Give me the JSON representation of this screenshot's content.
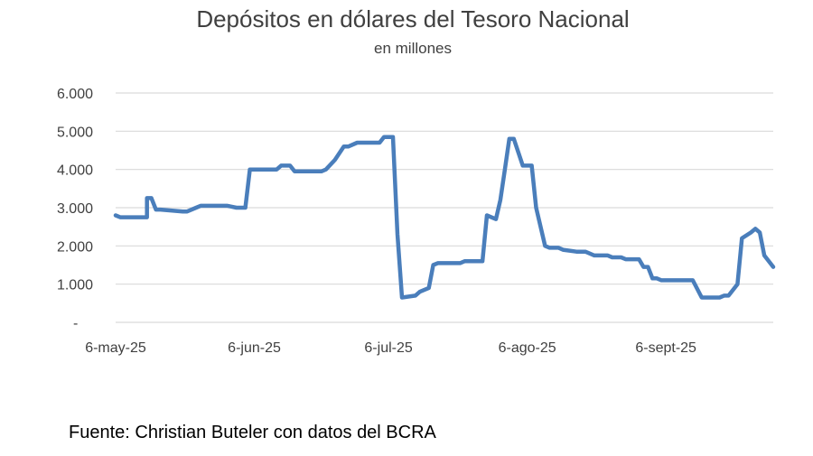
{
  "chart_data": {
    "type": "line",
    "title": "Depósitos en dólares del Tesoro Nacional",
    "subtitle": "en millones",
    "xlabel": "",
    "ylabel": "",
    "x_tick_labels": [
      "6-may-25",
      "6-jun-25",
      "6-jul-25",
      "6-ago-25",
      "6-sept-25"
    ],
    "x_tick_dates": [
      "2025-05-06",
      "2025-06-06",
      "2025-07-06",
      "2025-08-06",
      "2025-09-06"
    ],
    "y_tick_labels": [
      "-",
      "1.000",
      "2.000",
      "3.000",
      "4.000",
      "5.000",
      "6.000"
    ],
    "y_tick_values": [
      0,
      1000,
      2000,
      3000,
      4000,
      5000,
      6000
    ],
    "xlim": [
      "2025-05-06",
      "2025-09-30"
    ],
    "ylim": [
      0,
      6000
    ],
    "grid": true,
    "line_color": "#4a7ebb",
    "series": [
      {
        "x": [
          "2025-05-06",
          "2025-05-07",
          "2025-05-13",
          "2025-05-13",
          "2025-05-14",
          "2025-05-15",
          "2025-05-16",
          "2025-05-21",
          "2025-05-22",
          "2025-05-24",
          "2025-05-25",
          "2025-05-31",
          "2025-06-02",
          "2025-06-03",
          "2025-06-04",
          "2025-06-05",
          "2025-06-11",
          "2025-06-12",
          "2025-06-14",
          "2025-06-15",
          "2025-06-20",
          "2025-06-21",
          "2025-06-22",
          "2025-06-24",
          "2025-06-26",
          "2025-06-27",
          "2025-06-29",
          "2025-07-04",
          "2025-07-05",
          "2025-07-06",
          "2025-07-07",
          "2025-07-08",
          "2025-07-09",
          "2025-07-12",
          "2025-07-13",
          "2025-07-15",
          "2025-07-16",
          "2025-07-17",
          "2025-07-18",
          "2025-07-22",
          "2025-07-23",
          "2025-07-27",
          "2025-07-28",
          "2025-07-30",
          "2025-07-31",
          "2025-08-01",
          "2025-08-02",
          "2025-08-03",
          "2025-08-05",
          "2025-08-07",
          "2025-08-08",
          "2025-08-10",
          "2025-08-11",
          "2025-08-13",
          "2025-08-14",
          "2025-08-17",
          "2025-08-19",
          "2025-08-20",
          "2025-08-21",
          "2025-08-24",
          "2025-08-25",
          "2025-08-27",
          "2025-08-28",
          "2025-08-31",
          "2025-09-01",
          "2025-09-02",
          "2025-09-03",
          "2025-09-04",
          "2025-09-05",
          "2025-09-06",
          "2025-09-12",
          "2025-09-14",
          "2025-09-15",
          "2025-09-16",
          "2025-09-18",
          "2025-09-19",
          "2025-09-20",
          "2025-09-22",
          "2025-09-23",
          "2025-09-25",
          "2025-09-26",
          "2025-09-27",
          "2025-09-28",
          "2025-09-30"
        ],
        "y": [
          2800,
          2750,
          2750,
          3250,
          3250,
          2950,
          2950,
          2900,
          2900,
          3000,
          3050,
          3050,
          3000,
          3000,
          3000,
          4000,
          4000,
          4100,
          4100,
          3950,
          3950,
          3950,
          4000,
          4250,
          4600,
          4600,
          4700,
          4700,
          4850,
          4850,
          4850,
          2300,
          650,
          700,
          800,
          900,
          1500,
          1550,
          1550,
          1550,
          1600,
          1600,
          2800,
          2700,
          3200,
          4000,
          4800,
          4800,
          4100,
          4100,
          3000,
          2000,
          1950,
          1950,
          1900,
          1850,
          1850,
          1800,
          1750,
          1750,
          1700,
          1700,
          1650,
          1650,
          1450,
          1450,
          1150,
          1150,
          1100,
          1100,
          1100,
          650,
          650,
          650,
          650,
          700,
          700,
          1000,
          2200,
          2350,
          2450,
          2350,
          1750,
          1450
        ]
      }
    ],
    "source_note": "Fuente: Christian Buteler con datos del BCRA"
  }
}
